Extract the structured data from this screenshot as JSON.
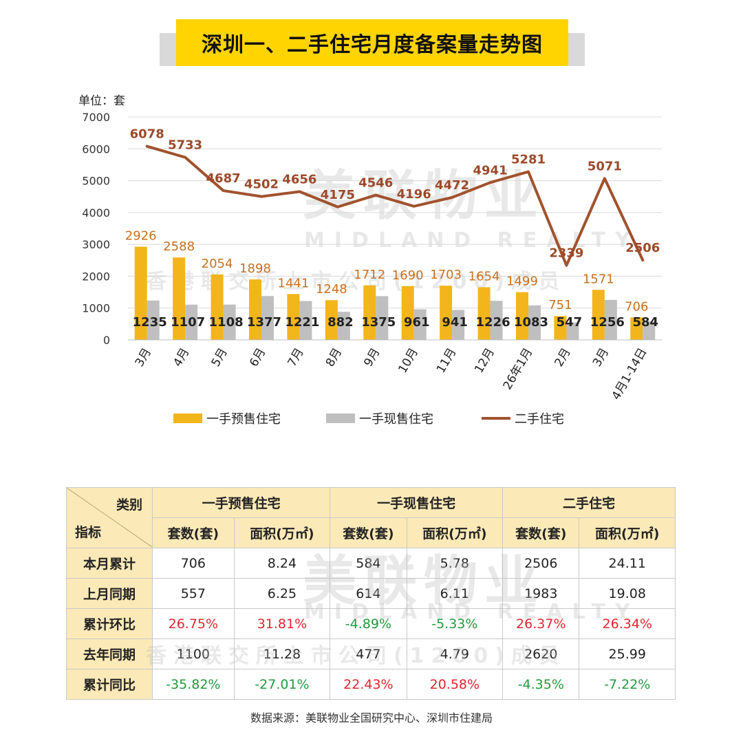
{
  "title": "深圳一、二手住宅月度备案量走势图",
  "unit_label": "单位：套",
  "watermark": {
    "brand": "美联物业",
    "brand_en": "MIDLAND REALTY",
    "subtitle": "香港联交所上市公司(1200)成员"
  },
  "chart_data": {
    "type": "bar",
    "categories": [
      "3月",
      "4月",
      "5月",
      "6月",
      "7月",
      "8月",
      "9月",
      "10月",
      "11月",
      "12月",
      "26年1月",
      "2月",
      "3月",
      "4月1-14日"
    ],
    "ylim": [
      0,
      7000
    ],
    "yticks": [
      "0",
      "1000",
      "2000",
      "3000",
      "4000",
      "5000",
      "6000",
      "7000"
    ],
    "ytick_values": [
      0,
      1000,
      2000,
      3000,
      4000,
      5000,
      6000,
      7000
    ],
    "grid": true,
    "legend_position": "bottom",
    "series": [
      {
        "name": "一手预售住宅",
        "kind": "bar",
        "color": "#f2b51b",
        "values": [
          2926,
          2588,
          2054,
          1898,
          1441,
          1248,
          1712,
          1690,
          1703,
          1654,
          1499,
          751,
          1571,
          706
        ]
      },
      {
        "name": "一手现售住宅",
        "kind": "bar",
        "color": "#bfbfbf",
        "values": [
          1235,
          1107,
          1108,
          1377,
          1221,
          882,
          1375,
          961,
          941,
          1226,
          1083,
          547,
          1256,
          584
        ]
      },
      {
        "name": "二手住宅",
        "kind": "line",
        "color": "#a0522d",
        "values": [
          6078,
          5733,
          4687,
          4502,
          4656,
          4175,
          4546,
          4196,
          4472,
          4941,
          5281,
          2339,
          5071,
          2506
        ]
      }
    ]
  },
  "table": {
    "corner_category": "类别",
    "corner_indicator": "指标",
    "groups": [
      "一手预售住宅",
      "一手现售住宅",
      "二手住宅"
    ],
    "subheaders": [
      "套数(套)",
      "面积(万㎡)",
      "套数(套)",
      "面积(万㎡)",
      "套数(套)",
      "面积(万㎡)"
    ],
    "rows": [
      {
        "label": "本月累计",
        "cells": [
          "706",
          "8.24",
          "584",
          "5.78",
          "2506",
          "24.11"
        ]
      },
      {
        "label": "上月同期",
        "cells": [
          "557",
          "6.25",
          "614",
          "6.11",
          "1983",
          "19.08"
        ]
      },
      {
        "label": "累计环比",
        "cells": [
          "26.75%",
          "31.81%",
          "-4.89%",
          "-5.33%",
          "26.37%",
          "26.34%"
        ]
      },
      {
        "label": "去年同期",
        "cells": [
          "1100",
          "11.28",
          "477",
          "4.79",
          "2620",
          "25.99"
        ]
      },
      {
        "label": "累计同比",
        "cells": [
          "-35.82%",
          "-27.01%",
          "22.43%",
          "20.58%",
          "-4.35%",
          "-7.22%"
        ]
      }
    ]
  },
  "source": "数据来源：美联物业全国研究中心、深圳市住建局"
}
